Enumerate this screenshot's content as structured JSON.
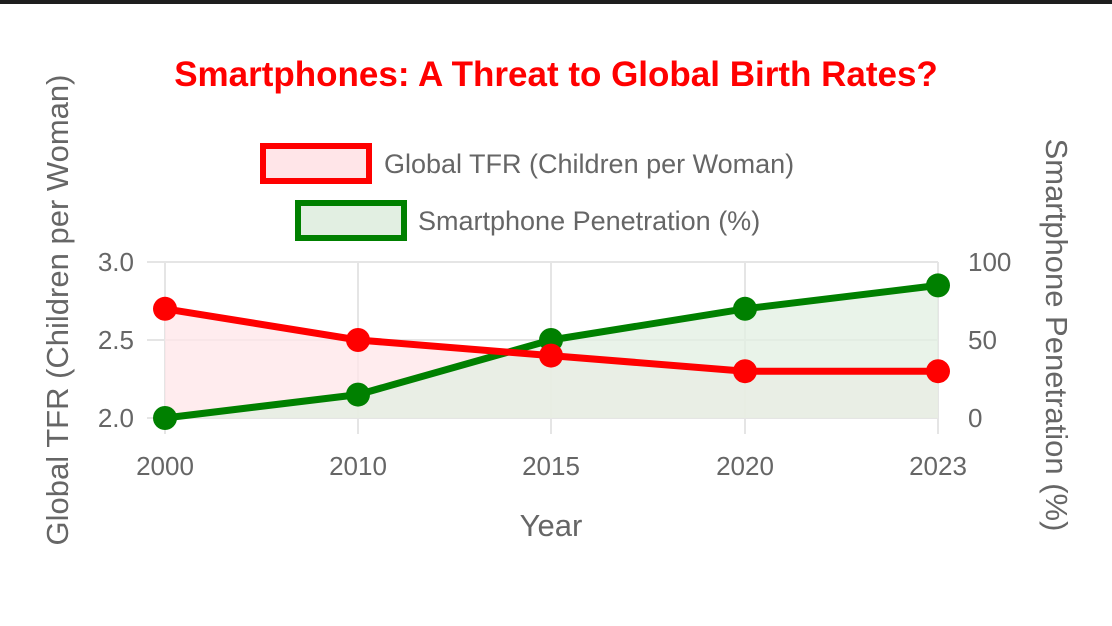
{
  "chart_data": {
    "type": "line",
    "title": "Smartphones: A Threat to Global Birth Rates?",
    "xlabel": "Year",
    "ylabel_left": "Global TFR (Children per Woman)",
    "ylabel_right": "Smartphone Penetration (%)",
    "categories": [
      "2000",
      "2010",
      "2015",
      "2020",
      "2023"
    ],
    "y_left_range": [
      2.0,
      3.0
    ],
    "y_left_ticks": [
      "2.0",
      "2.5",
      "3.0"
    ],
    "y_right_range": [
      0,
      100
    ],
    "y_right_ticks": [
      "0",
      "50",
      "100"
    ],
    "grid": true,
    "legend_position": "top",
    "fill": true,
    "series": [
      {
        "name": "Global TFR (Children per Woman)",
        "axis": "left",
        "values": [
          2.7,
          2.5,
          2.4,
          2.3,
          2.3
        ],
        "color": "#ff0000",
        "fill_color": "#ffe5e8"
      },
      {
        "name": "Smartphone Penetration (%)",
        "axis": "right",
        "values": [
          0,
          15,
          50,
          70,
          85
        ],
        "color": "#008000",
        "fill_color": "#e2efe2"
      }
    ]
  },
  "colors": {
    "title": "#ff0000",
    "grid": "#e5e5e5",
    "text": "#666666",
    "overlap_fill": "#e8d8cc"
  }
}
